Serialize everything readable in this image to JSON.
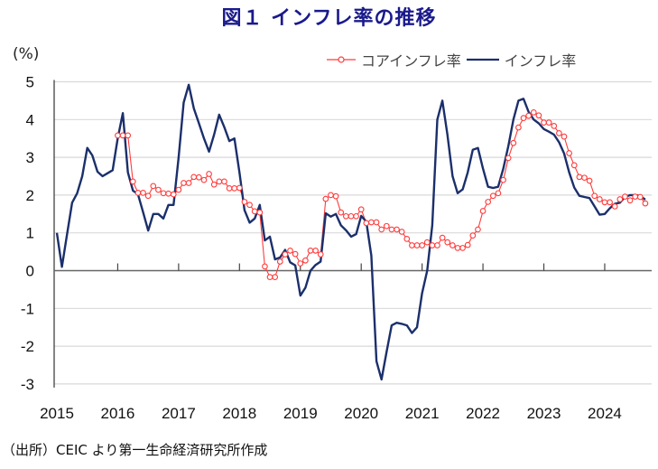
{
  "chart_data": {
    "type": "line",
    "title": "図１ インフレ率の推移",
    "ylabel": "(%)",
    "xlabel": "",
    "ylim": [
      -3,
      5
    ],
    "yticks": [
      5,
      4,
      3,
      2,
      1,
      0,
      -1,
      -2,
      -3
    ],
    "xticks": [
      "2015",
      "2016",
      "2017",
      "2018",
      "2019",
      "2020",
      "2021",
      "2022",
      "2023",
      "2024"
    ],
    "x_start": "2015-01",
    "x_frequency": "monthly",
    "grid": true,
    "legend_position": "top-right",
    "series": [
      {
        "name": "コアインフレ率",
        "color": "#ff3b3b",
        "marker": "circle",
        "values": [
          null,
          null,
          null,
          null,
          null,
          null,
          null,
          null,
          null,
          null,
          null,
          null,
          3.58,
          3.58,
          3.58,
          2.36,
          2.06,
          2.06,
          1.98,
          2.24,
          2.14,
          2.05,
          2.04,
          2.02,
          2.14,
          2.32,
          2.32,
          2.48,
          2.47,
          2.4,
          2.56,
          2.28,
          2.36,
          2.36,
          2.18,
          2.18,
          2.19,
          1.82,
          1.74,
          1.57,
          1.54,
          0.11,
          -0.17,
          -0.17,
          0.24,
          0.43,
          0.53,
          0.44,
          0.19,
          0.27,
          0.53,
          0.53,
          0.43,
          1.9,
          2.0,
          1.97,
          1.54,
          1.44,
          1.44,
          1.44,
          1.62,
          1.26,
          1.28,
          1.28,
          1.09,
          1.18,
          1.09,
          1.09,
          1.03,
          0.84,
          0.67,
          0.67,
          0.67,
          0.75,
          0.67,
          0.67,
          0.87,
          0.75,
          0.67,
          0.6,
          0.6,
          0.68,
          0.93,
          1.09,
          1.58,
          1.82,
          1.98,
          2.05,
          2.4,
          2.98,
          3.38,
          3.79,
          4.04,
          4.1,
          4.19,
          4.11,
          3.92,
          3.92,
          3.83,
          3.64,
          3.55,
          3.11,
          2.79,
          2.48,
          2.46,
          2.38,
          1.98,
          1.89,
          1.81,
          1.81,
          1.7,
          1.89,
          1.96,
          1.86,
          1.96,
          1.95,
          1.78
        ]
      },
      {
        "name": "インフレ率",
        "color": "#1b2f6b",
        "marker": "none",
        "values": [
          1.0,
          0.1,
          0.95,
          1.8,
          2.05,
          2.5,
          3.25,
          3.05,
          2.62,
          2.5,
          2.58,
          2.66,
          3.5,
          4.17,
          2.6,
          2.12,
          2.02,
          1.55,
          1.06,
          1.5,
          1.5,
          1.38,
          1.74,
          1.74,
          3.0,
          4.45,
          4.92,
          4.3,
          3.9,
          3.5,
          3.15,
          3.6,
          4.13,
          3.8,
          3.43,
          3.5,
          2.6,
          1.6,
          1.27,
          1.38,
          1.74,
          0.8,
          0.9,
          0.3,
          0.35,
          0.55,
          0.22,
          0.14,
          -0.66,
          -0.45,
          0.0,
          0.15,
          0.24,
          1.52,
          1.43,
          1.5,
          1.2,
          1.07,
          0.9,
          0.97,
          1.45,
          1.3,
          0.4,
          -2.4,
          -2.88,
          -2.15,
          -1.45,
          -1.38,
          -1.41,
          -1.45,
          -1.65,
          -1.5,
          -0.6,
          0.0,
          1.2,
          4.0,
          4.5,
          3.6,
          2.5,
          2.05,
          2.15,
          2.6,
          3.2,
          3.25,
          2.7,
          2.22,
          2.19,
          2.22,
          2.7,
          3.3,
          4.0,
          4.5,
          4.55,
          4.2,
          4.0,
          3.9,
          3.75,
          3.68,
          3.6,
          3.4,
          3.1,
          2.6,
          2.2,
          1.98,
          1.95,
          1.92,
          1.7,
          1.48,
          1.5,
          1.65,
          1.77,
          1.8,
          1.95,
          2.0,
          2.0,
          1.98,
          1.88
        ]
      }
    ],
    "source": "（出所）CEIC より第一生命経済研究所作成"
  }
}
